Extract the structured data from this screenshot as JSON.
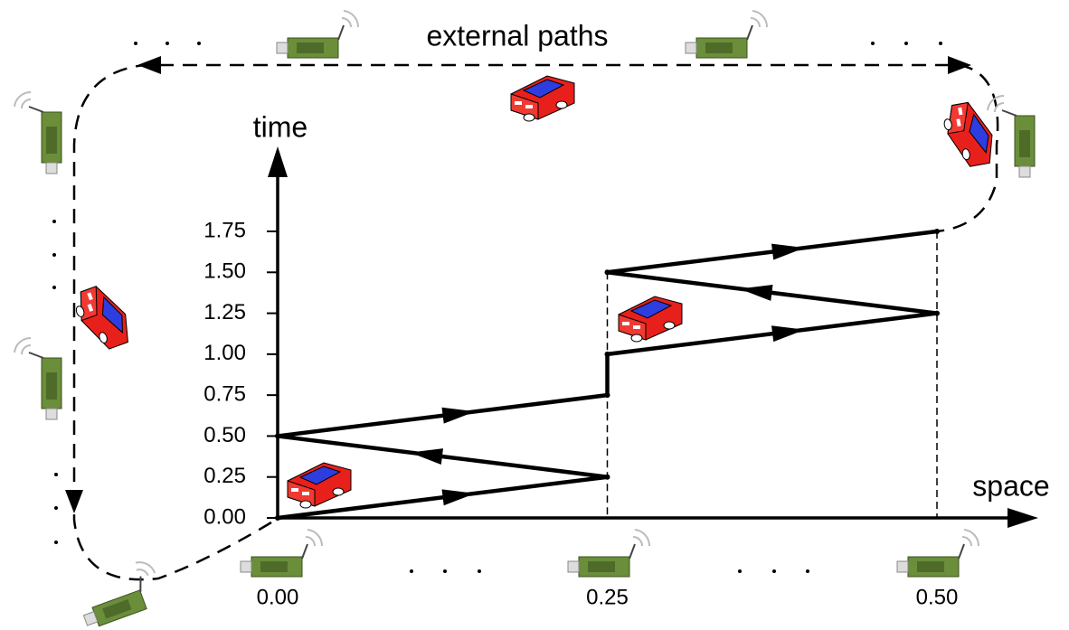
{
  "chart_data": {
    "type": "line",
    "annotation": "external paths",
    "xlabel": "space",
    "ylabel": "time",
    "x": [
      0,
      0.25,
      0,
      0.25,
      0.25,
      0.5,
      0.25,
      0.5
    ],
    "values": [
      0,
      0.25,
      0.5,
      0.75,
      1.0,
      1.25,
      1.5,
      1.75
    ],
    "color": "#000000",
    "xlim": [
      0,
      0.5
    ],
    "ylim": [
      0,
      1.75
    ],
    "xticks": [
      {
        "value": 0,
        "label": "0.00"
      },
      {
        "value": 0.25,
        "label": "0.25"
      },
      {
        "value": 0.5,
        "label": "0.50"
      }
    ],
    "yticks": [
      {
        "value": 0,
        "label": "0.00"
      },
      {
        "value": 0.25,
        "label": "0.25"
      },
      {
        "value": 0.5,
        "label": "0.50"
      },
      {
        "value": 0.75,
        "label": "0.75"
      },
      {
        "value": 1.0,
        "label": "1.00"
      },
      {
        "value": 1.25,
        "label": "1.25"
      },
      {
        "value": 1.5,
        "label": "1.50"
      },
      {
        "value": 1.75,
        "label": "1.75"
      }
    ]
  }
}
